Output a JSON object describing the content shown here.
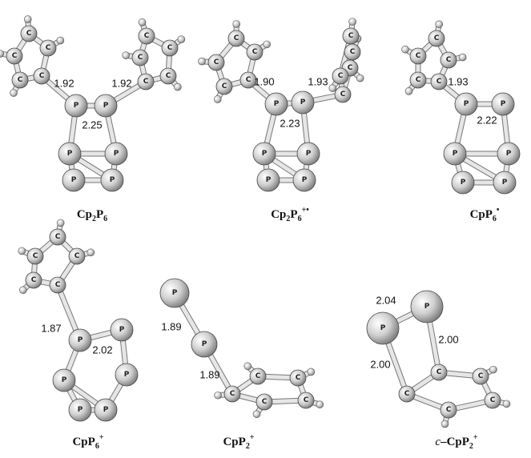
{
  "molecules": [
    {
      "caption": [
        {
          "text": "Cp"
        },
        {
          "text": "2",
          "style": "sub"
        },
        {
          "text": "P"
        },
        {
          "text": "6",
          "style": "sub"
        }
      ],
      "distances": [
        "1.92",
        "1.92",
        "2.25"
      ],
      "atoms": [
        "C",
        "C",
        "C",
        "C",
        "C",
        "C",
        "C",
        "C",
        "C",
        "C",
        "P",
        "P",
        "P",
        "P",
        "P",
        "P"
      ]
    },
    {
      "caption": [
        {
          "text": "Cp"
        },
        {
          "text": "2",
          "style": "sub"
        },
        {
          "text": "P"
        },
        {
          "text": "6",
          "style": "sub"
        },
        {
          "text": "+•",
          "style": "sup"
        }
      ],
      "distances": [
        "1.90",
        "1.93",
        "2.23"
      ],
      "atoms": [
        "C",
        "C",
        "C",
        "C",
        "C",
        "C",
        "C",
        "C",
        "C",
        "C",
        "P",
        "P",
        "P",
        "P",
        "P",
        "P"
      ]
    },
    {
      "caption": [
        {
          "text": "CpP"
        },
        {
          "text": "6",
          "style": "sub"
        },
        {
          "text": "•",
          "style": "sup"
        }
      ],
      "distances": [
        "1.93",
        "2.22"
      ],
      "atoms": [
        "C",
        "C",
        "C",
        "C",
        "C",
        "P",
        "P",
        "P",
        "P",
        "P",
        "P"
      ]
    },
    {
      "caption": [
        {
          "text": "CpP"
        },
        {
          "text": "6",
          "style": "sub"
        },
        {
          "text": "+",
          "style": "sup"
        }
      ],
      "distances": [
        "1.87",
        "2.02"
      ],
      "atoms": [
        "C",
        "C",
        "C",
        "C",
        "C",
        "P",
        "P",
        "P",
        "P",
        "P",
        "P"
      ]
    },
    {
      "caption": [
        {
          "text": "CpP"
        },
        {
          "text": "2",
          "style": "sub"
        },
        {
          "text": "+",
          "style": "sup"
        }
      ],
      "distances": [
        "1.89",
        "1.89"
      ],
      "atoms": [
        "P",
        "P",
        "C",
        "C",
        "C",
        "C",
        "C"
      ]
    },
    {
      "caption": [
        {
          "text": "c",
          "style": "italic"
        },
        {
          "text": "–CpP"
        },
        {
          "text": "2",
          "style": "sub"
        },
        {
          "text": "+",
          "style": "sup"
        }
      ],
      "distances": [
        "2.04",
        "2.00",
        "2.00"
      ],
      "atoms": [
        "P",
        "P",
        "C",
        "C",
        "C",
        "C",
        "C"
      ]
    }
  ]
}
